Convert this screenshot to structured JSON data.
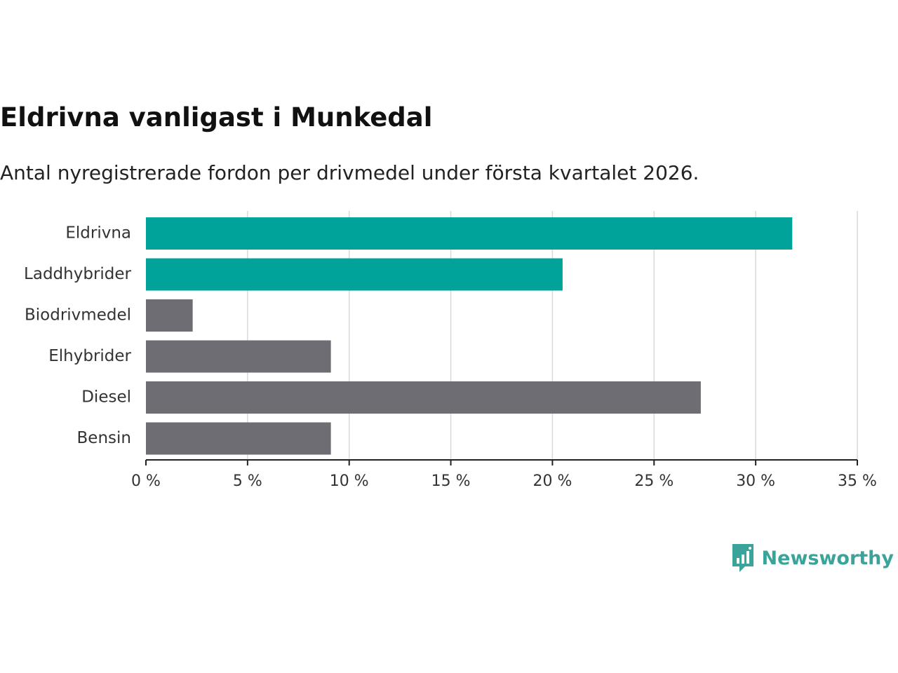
{
  "chart_data": {
    "type": "bar",
    "orientation": "horizontal",
    "title": "Eldrivna vanligast i Munkedal",
    "subtitle": "Antal nyregistrerade fordon per drivmedel under första kvartalet 2026.",
    "categories": [
      "Eldrivna",
      "Laddhybrider",
      "Biodrivmedel",
      "Elhybrider",
      "Diesel",
      "Bensin"
    ],
    "values": [
      31.8,
      20.5,
      2.3,
      9.1,
      27.3,
      9.1
    ],
    "highlighted": [
      true,
      true,
      false,
      false,
      false,
      false
    ],
    "xlim": [
      0,
      35
    ],
    "ticks": [
      0,
      5,
      10,
      15,
      20,
      25,
      30,
      35
    ],
    "tick_labels": [
      "0 %",
      "5 %",
      "10 %",
      "15 %",
      "20 %",
      "25 %",
      "30 %",
      "35 %"
    ],
    "grid": true,
    "colors": {
      "highlight": "#00a39a",
      "default": "#6e6d73",
      "grid": "#d9d9d9",
      "axis": "#222222"
    }
  },
  "branding": {
    "name": "Newsworthy",
    "icon": "newsworthy-logo-icon",
    "color": "#3aa39a"
  }
}
